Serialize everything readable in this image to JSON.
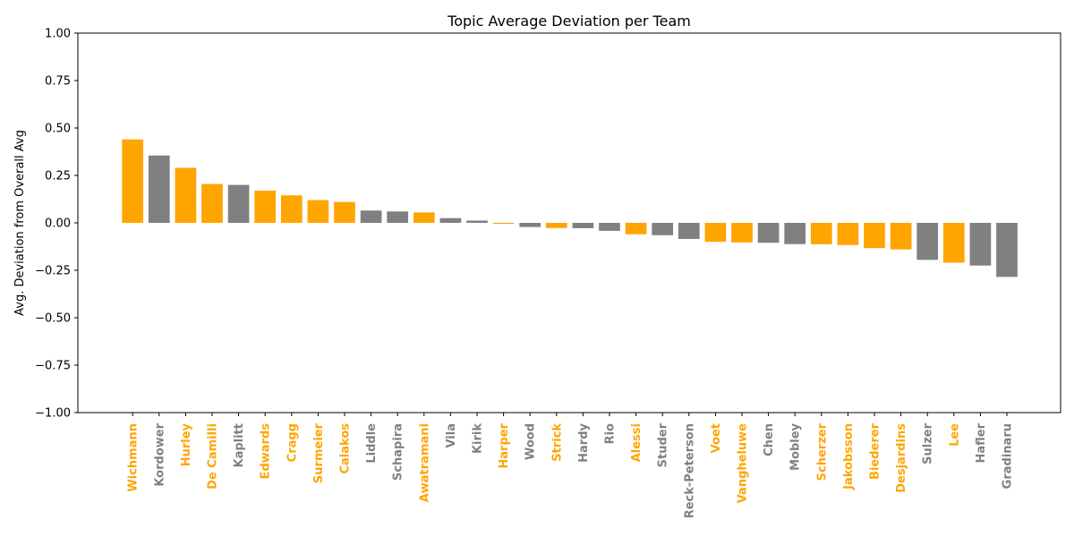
{
  "chart_data": {
    "type": "bar",
    "title": "Topic Average Deviation per Team",
    "xlabel": "",
    "ylabel": "Avg. Deviation from Overall Avg",
    "ylim": [
      -1.0,
      1.0
    ],
    "yticks": [
      "1.00",
      "0.75",
      "0.50",
      "0.25",
      "0.00",
      "−0.25",
      "−0.50",
      "−0.75",
      "−1.00"
    ],
    "ytick_values": [
      1.0,
      0.75,
      0.5,
      0.25,
      0.0,
      -0.25,
      -0.5,
      -0.75,
      -1.0
    ],
    "grid": false,
    "colors": {
      "highlight": "#FFA500",
      "default": "#808080"
    },
    "categories": [
      "Wichmann",
      "Kordower",
      "Hurley",
      "De Camilli",
      "Kaplitt",
      "Edwards",
      "Cragg",
      "Surmeier",
      "Calakos",
      "Liddle",
      "Schapira",
      "Awatramani",
      "Vila",
      "Kirik",
      "Harper",
      "Wood",
      "Strick",
      "Hardy",
      "Rio",
      "Alessi",
      "Studer",
      "Reck-Peterson",
      "Voet",
      "Vangheluwe",
      "Chen",
      "Mobley",
      "Scherzer",
      "Jakobsson",
      "Biederer",
      "Desjardins",
      "Sulzer",
      "Lee",
      "Hafler",
      "Gradinaru"
    ],
    "values": [
      0.44,
      0.355,
      0.29,
      0.205,
      0.2,
      0.17,
      0.145,
      0.12,
      0.11,
      0.065,
      0.06,
      0.055,
      0.025,
      0.012,
      -0.005,
      -0.022,
      -0.027,
      -0.028,
      -0.042,
      -0.06,
      -0.065,
      -0.085,
      -0.1,
      -0.103,
      -0.105,
      -0.112,
      -0.113,
      -0.117,
      -0.133,
      -0.14,
      -0.195,
      -0.21,
      -0.225,
      -0.285
    ],
    "highlighted": [
      true,
      false,
      true,
      true,
      false,
      true,
      true,
      true,
      true,
      false,
      false,
      true,
      false,
      false,
      true,
      false,
      true,
      false,
      false,
      true,
      false,
      false,
      true,
      true,
      false,
      false,
      true,
      true,
      true,
      true,
      false,
      true,
      false,
      false
    ]
  }
}
